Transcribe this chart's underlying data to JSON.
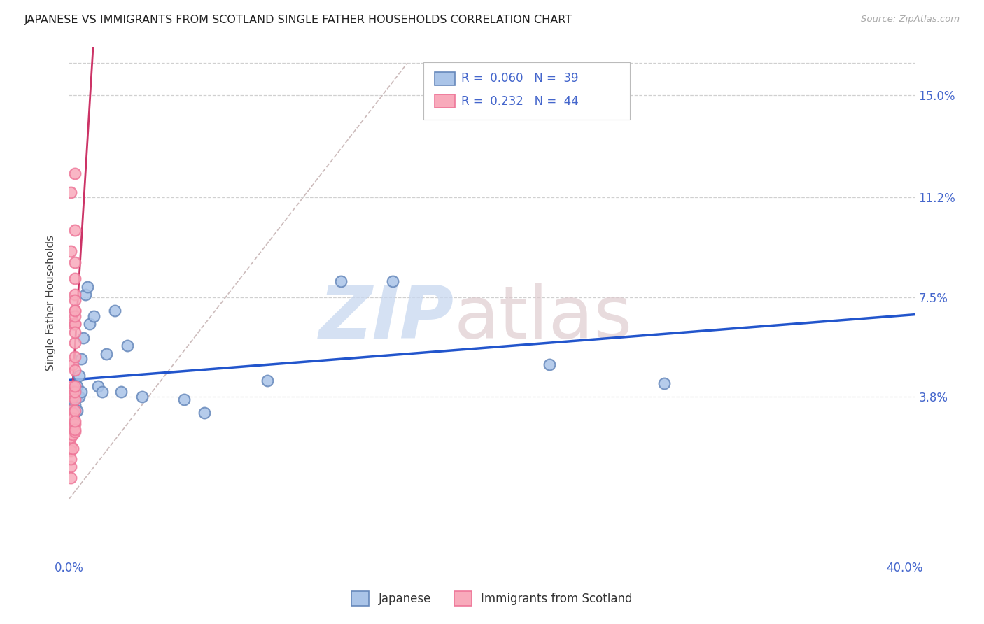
{
  "title": "JAPANESE VS IMMIGRANTS FROM SCOTLAND SINGLE FATHER HOUSEHOLDS CORRELATION CHART",
  "source": "Source: ZipAtlas.com",
  "ylabel": "Single Father Households",
  "xlim": [
    0.0,
    0.405
  ],
  "ylim": [
    -0.022,
    0.168
  ],
  "xtick_positions": [
    0.0,
    0.05,
    0.1,
    0.15,
    0.2,
    0.25,
    0.3,
    0.35,
    0.4
  ],
  "xticklabels": [
    "0.0%",
    "",
    "",
    "",
    "",
    "",
    "",
    "",
    "40.0%"
  ],
  "ytick_positions": [
    0.038,
    0.075,
    0.112,
    0.15
  ],
  "yticklabels": [
    "3.8%",
    "7.5%",
    "11.2%",
    "15.0%"
  ],
  "background_color": "#ffffff",
  "grid_color": "#d0d0d0",
  "title_color": "#222222",
  "axis_tick_color": "#4466cc",
  "blue_fill": "#aac4e8",
  "pink_fill": "#f8aabb",
  "blue_edge": "#6688bb",
  "pink_edge": "#ee7799",
  "regression_blue": "#2255cc",
  "regression_pink": "#cc3366",
  "diagonal_color": "#ccbbbb",
  "watermark_zip_color": "#c8d8f0",
  "watermark_atlas_color": "#ddc8cc",
  "legend_R1": "0.060",
  "legend_N1": "39",
  "legend_R2": "0.232",
  "legend_N2": "44",
  "legend_label1": "Japanese",
  "legend_label2": "Immigrants from Scotland",
  "japanese_x": [
    0.001,
    0.001,
    0.001,
    0.001,
    0.001,
    0.002,
    0.002,
    0.002,
    0.002,
    0.003,
    0.003,
    0.003,
    0.003,
    0.004,
    0.004,
    0.004,
    0.005,
    0.005,
    0.006,
    0.006,
    0.007,
    0.008,
    0.009,
    0.01,
    0.012,
    0.014,
    0.016,
    0.018,
    0.022,
    0.025,
    0.028,
    0.035,
    0.055,
    0.065,
    0.095,
    0.13,
    0.155,
    0.23,
    0.285
  ],
  "japanese_y": [
    0.033,
    0.037,
    0.03,
    0.04,
    0.035,
    0.028,
    0.036,
    0.04,
    0.032,
    0.038,
    0.032,
    0.04,
    0.035,
    0.042,
    0.038,
    0.033,
    0.046,
    0.038,
    0.052,
    0.04,
    0.06,
    0.076,
    0.079,
    0.065,
    0.068,
    0.042,
    0.04,
    0.054,
    0.07,
    0.04,
    0.057,
    0.038,
    0.037,
    0.032,
    0.044,
    0.081,
    0.081,
    0.05,
    0.043
  ],
  "scotland_x": [
    0.001,
    0.001,
    0.001,
    0.001,
    0.001,
    0.001,
    0.001,
    0.001,
    0.001,
    0.001,
    0.001,
    0.002,
    0.002,
    0.002,
    0.002,
    0.002,
    0.002,
    0.002,
    0.002,
    0.002,
    0.002,
    0.003,
    0.003,
    0.003,
    0.003,
    0.003,
    0.003,
    0.003,
    0.003,
    0.003,
    0.003,
    0.003,
    0.003,
    0.003,
    0.003,
    0.003,
    0.003,
    0.003,
    0.003,
    0.003,
    0.003,
    0.003,
    0.003,
    0.003
  ],
  "scotland_y": [
    0.025,
    0.02,
    0.018,
    0.028,
    0.033,
    0.012,
    0.008,
    0.023,
    0.015,
    0.114,
    0.092,
    0.027,
    0.032,
    0.019,
    0.024,
    0.042,
    0.05,
    0.038,
    0.03,
    0.04,
    0.065,
    0.037,
    0.04,
    0.028,
    0.042,
    0.033,
    0.048,
    0.058,
    0.065,
    0.076,
    0.1,
    0.074,
    0.121,
    0.065,
    0.07,
    0.082,
    0.025,
    0.062,
    0.068,
    0.053,
    0.088,
    0.07,
    0.026,
    0.029
  ]
}
